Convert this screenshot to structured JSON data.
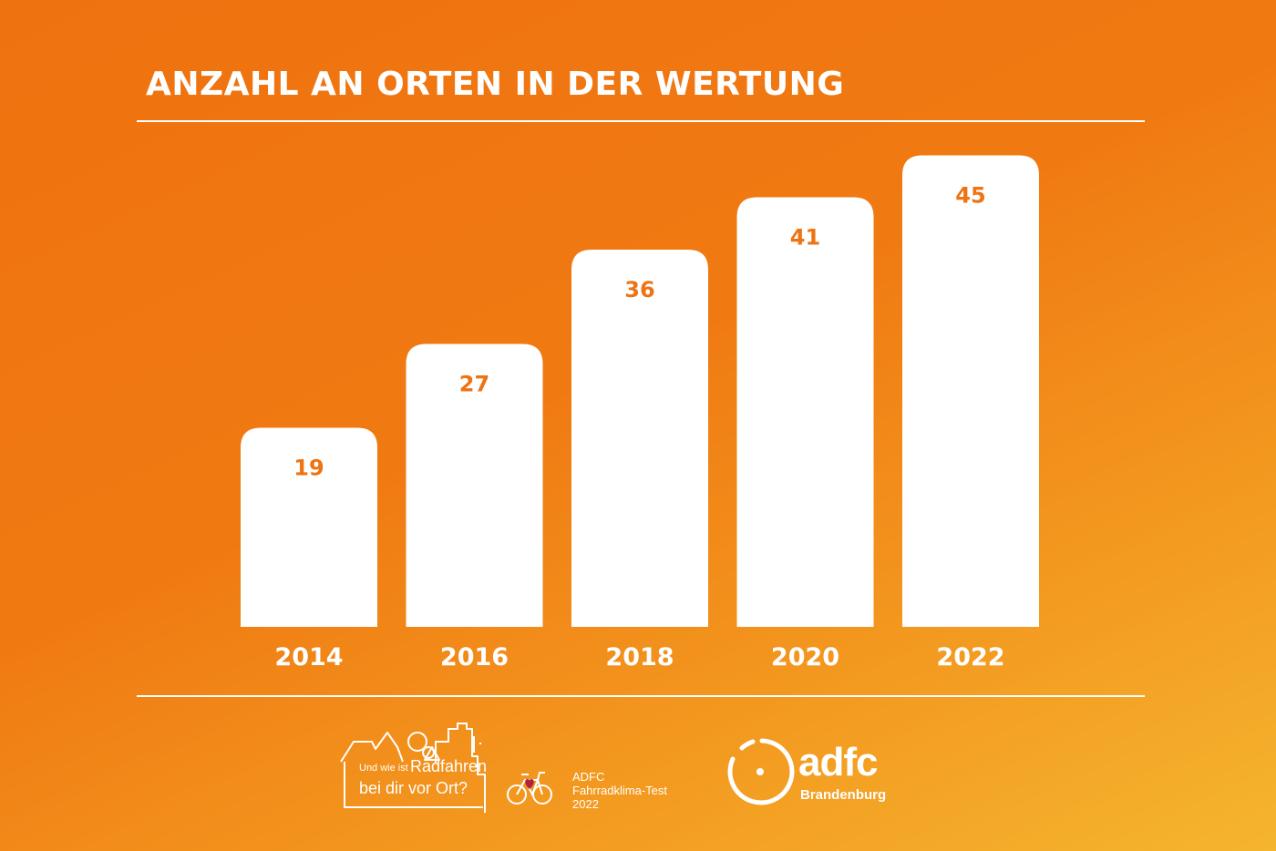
{
  "title": "ANZAHL AN ORTEN IN DER WERTUNG",
  "colors": {
    "background_start": "#ef7210",
    "background_end": "#f5b52e",
    "bar": "#ffffff",
    "value_label": "#ee7313",
    "text": "#ffffff",
    "heart": "#b0223a"
  },
  "chart_data": {
    "type": "bar",
    "title": "ANZAHL AN ORTEN IN DER WERTUNG",
    "categories": [
      "2014",
      "2016",
      "2018",
      "2020",
      "2022"
    ],
    "values": [
      19,
      27,
      36,
      41,
      45
    ],
    "xlabel": "",
    "ylabel": "",
    "grid": false,
    "legend": "none",
    "data_labels": "inside-top"
  },
  "footer": {
    "campaign": {
      "line1_small": "Und wie ist",
      "line1_big": "Radfahren",
      "line2": "bei dir vor Ort?"
    },
    "test": {
      "line1": "ADFC",
      "line2": "Fahrradklima-Test",
      "line3": "2022"
    },
    "org": {
      "name": "adfc",
      "region": "Brandenburg"
    }
  }
}
